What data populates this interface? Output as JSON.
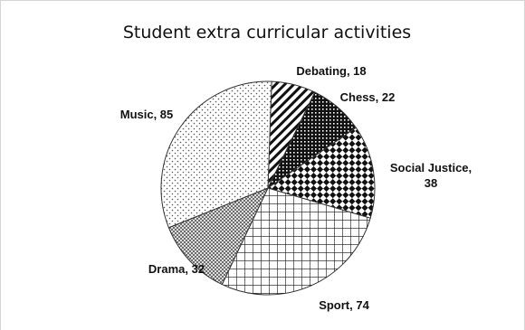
{
  "chart_data": {
    "type": "pie",
    "title": "Student extra curricular activities",
    "start_angle_deg": -88,
    "direction": "clockwise",
    "slices": [
      {
        "label": "Debating",
        "value": 18,
        "pattern": "diag-stripes",
        "label_text": [
          "Debating, 18"
        ]
      },
      {
        "label": "Chess",
        "value": 22,
        "pattern": "dense-dots",
        "label_text": [
          "Chess, 22"
        ]
      },
      {
        "label": "Social Justice",
        "value": 38,
        "pattern": "checker",
        "label_text": [
          "Social Justice,",
          "38"
        ]
      },
      {
        "label": "Sport",
        "value": 74,
        "pattern": "grid",
        "label_text": [
          "Sport, 74"
        ]
      },
      {
        "label": "Drama",
        "value": 32,
        "pattern": "crosshatch",
        "label_text": [
          "Drama, 32"
        ]
      },
      {
        "label": "Music",
        "value": 85,
        "pattern": "sparse-dots",
        "label_text": [
          "Music, 85"
        ]
      }
    ]
  }
}
